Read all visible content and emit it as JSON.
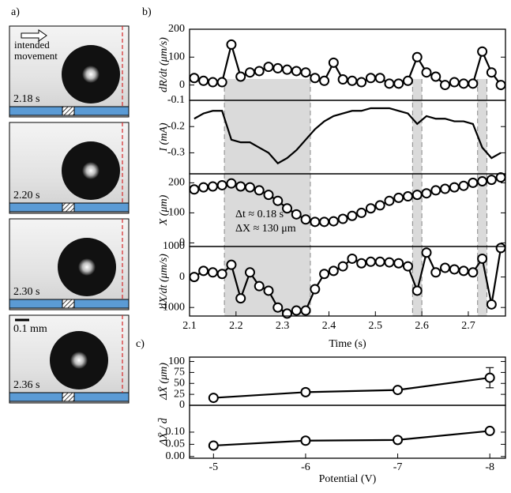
{
  "panel_labels": [
    "a)",
    "b)",
    "c)"
  ],
  "panel_a": {
    "arrow_label": "intended movement",
    "times": [
      "2.18 s",
      "2.20 s",
      "2.30 s",
      "2.36 s"
    ],
    "scale_bar": "0.1 mm"
  },
  "chart_data": [
    {
      "type": "line",
      "ylabel": "dR/dt (μm/s)",
      "markers": true,
      "color": "#000000",
      "x": [
        2.11,
        2.13,
        2.15,
        2.17,
        2.19,
        2.21,
        2.23,
        2.25,
        2.27,
        2.29,
        2.31,
        2.33,
        2.35,
        2.37,
        2.39,
        2.41,
        2.43,
        2.45,
        2.47,
        2.49,
        2.51,
        2.53,
        2.55,
        2.57,
        2.59,
        2.61,
        2.63,
        2.65,
        2.67,
        2.69,
        2.71,
        2.73,
        2.75,
        2.77
      ],
      "values": [
        25,
        15,
        10,
        10,
        145,
        30,
        45,
        50,
        65,
        60,
        55,
        50,
        45,
        25,
        15,
        80,
        20,
        15,
        10,
        25,
        25,
        5,
        5,
        15,
        100,
        45,
        30,
        0,
        10,
        5,
        5,
        120,
        45,
        0
      ],
      "xlim": [
        2.1,
        2.78
      ],
      "ylim": [
        -55,
        200
      ],
      "yticks": [
        0,
        100,
        200
      ],
      "shaded_spans": [
        [
          2.175,
          2.36
        ],
        [
          2.58,
          2.6
        ],
        [
          2.72,
          2.74
        ]
      ]
    },
    {
      "type": "line",
      "ylabel": "I (mA)",
      "markers": false,
      "color": "#000000",
      "x": [
        2.11,
        2.13,
        2.15,
        2.17,
        2.19,
        2.21,
        2.23,
        2.25,
        2.27,
        2.29,
        2.31,
        2.33,
        2.35,
        2.37,
        2.39,
        2.41,
        2.43,
        2.45,
        2.47,
        2.49,
        2.51,
        2.53,
        2.55,
        2.57,
        2.59,
        2.61,
        2.63,
        2.65,
        2.67,
        2.69,
        2.71,
        2.73,
        2.75,
        2.77
      ],
      "values": [
        -0.17,
        -0.15,
        -0.14,
        -0.14,
        -0.25,
        -0.26,
        -0.26,
        -0.28,
        -0.3,
        -0.34,
        -0.32,
        -0.29,
        -0.25,
        -0.21,
        -0.18,
        -0.16,
        -0.15,
        -0.14,
        -0.14,
        -0.13,
        -0.13,
        -0.13,
        -0.14,
        -0.15,
        -0.19,
        -0.16,
        -0.17,
        -0.17,
        -0.18,
        -0.18,
        -0.19,
        -0.28,
        -0.32,
        -0.3
      ],
      "xlim": [
        2.1,
        2.78
      ],
      "ylim": [
        -0.38,
        -0.1
      ],
      "yticks": [
        -0.1,
        -0.2,
        -0.3
      ]
    },
    {
      "type": "line",
      "ylabel": "X (μm)",
      "markers": true,
      "color": "#000000",
      "x": [
        2.11,
        2.13,
        2.15,
        2.17,
        2.19,
        2.21,
        2.23,
        2.25,
        2.27,
        2.29,
        2.31,
        2.33,
        2.35,
        2.37,
        2.39,
        2.41,
        2.43,
        2.45,
        2.47,
        2.49,
        2.51,
        2.53,
        2.55,
        2.57,
        2.59,
        2.61,
        2.63,
        2.65,
        2.67,
        2.69,
        2.71,
        2.73,
        2.75,
        2.77
      ],
      "values": [
        178,
        185,
        188,
        192,
        198,
        188,
        185,
        175,
        160,
        140,
        115,
        95,
        78,
        70,
        70,
        72,
        80,
        90,
        100,
        115,
        125,
        140,
        150,
        155,
        160,
        165,
        175,
        180,
        185,
        190,
        200,
        205,
        210,
        218
      ],
      "xlim": [
        2.1,
        2.78
      ],
      "ylim": [
        -12,
        230
      ],
      "yticks": [
        0,
        100,
        200
      ],
      "annotations": [
        "Δt ≈ 0.18 s",
        "ΔX ≈ 130 μm"
      ]
    },
    {
      "type": "line",
      "ylabel": "dX/dt (μm/s)",
      "xlabel": "Time (s)",
      "markers": true,
      "color": "#000000",
      "x": [
        2.11,
        2.13,
        2.15,
        2.17,
        2.19,
        2.21,
        2.23,
        2.25,
        2.27,
        2.29,
        2.31,
        2.33,
        2.35,
        2.37,
        2.39,
        2.41,
        2.43,
        2.45,
        2.47,
        2.49,
        2.51,
        2.53,
        2.55,
        2.57,
        2.59,
        2.61,
        2.63,
        2.65,
        2.67,
        2.69,
        2.71,
        2.73,
        2.75,
        2.77
      ],
      "values": [
        0,
        200,
        150,
        100,
        400,
        -700,
        150,
        -300,
        -450,
        -1000,
        -1200,
        -1100,
        -1100,
        -400,
        100,
        200,
        350,
        600,
        450,
        500,
        500,
        480,
        450,
        350,
        -450,
        800,
        150,
        300,
        250,
        200,
        150,
        600,
        -900,
        950
      ],
      "xlim": [
        2.1,
        2.78
      ],
      "ylim": [
        -1280,
        1000
      ],
      "yticks": [
        -1000,
        0,
        1000
      ],
      "xticks": [
        2.1,
        2.2,
        2.3,
        2.4,
        2.5,
        2.6,
        2.7
      ]
    },
    {
      "type": "line",
      "ylabel": "ΔX̄ (μm)",
      "markers": true,
      "color": "#000000",
      "x": [
        -5,
        -6,
        -7,
        -8
      ],
      "values": [
        17,
        30,
        35,
        63
      ],
      "errors": [
        6,
        7,
        6,
        23
      ],
      "xlim": [
        -4.74,
        -8.17
      ],
      "ylim": [
        0,
        110
      ],
      "yticks": [
        0,
        25,
        50,
        75,
        100
      ]
    },
    {
      "type": "line",
      "ylabel": "ΔX̄ / d̄",
      "xlabel": "Potential (V)",
      "markers": true,
      "color": "#000000",
      "x": [
        -5,
        -6,
        -7,
        -8
      ],
      "values": [
        0.045,
        0.065,
        0.068,
        0.105
      ],
      "xlim": [
        -4.74,
        -8.17
      ],
      "ylim": [
        -0.007,
        0.21
      ],
      "yticks": [
        {
          "value": 0,
          "label": "0.00"
        },
        {
          "value": 0.05,
          "label": "0.05"
        },
        {
          "value": 0.1,
          "label": "0.10"
        }
      ],
      "xticks": [
        -5,
        -6,
        -7,
        -8
      ]
    }
  ]
}
